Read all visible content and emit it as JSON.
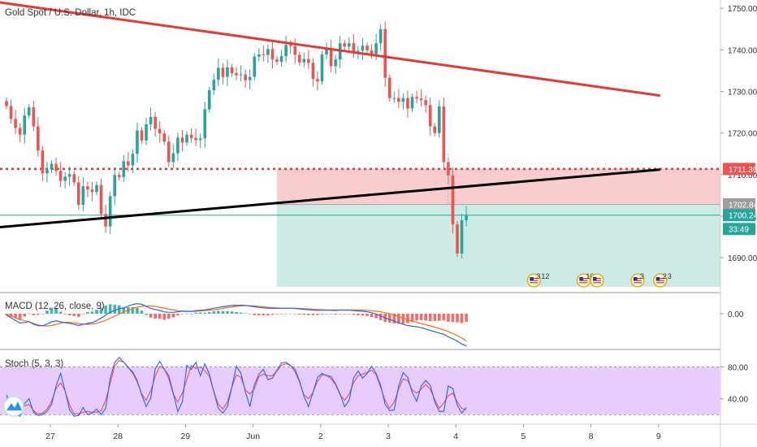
{
  "header": {
    "symbol_title": "Gold Spot / U.S. Dollar, 1h, IDC"
  },
  "colors": {
    "up": "#26a69a",
    "down": "#ef5350",
    "resistance_line": "#e53935",
    "support_line": "#000000",
    "stop_zone": "#f9cdcd",
    "target_zone": "#cdebe5",
    "macd_line": "#2962ff",
    "signal_line": "#ff6d00",
    "stoch_k": "#2962ff",
    "stoch_d": "#ef5350",
    "stoch_band": "#e6ccff",
    "axis_text": "#333333"
  },
  "chart_data": [
    {
      "type": "candlestick",
      "pane": "price",
      "title": "Gold Spot / U.S. Dollar, 1h, IDC",
      "y_ticks": [
        1690,
        1700,
        1710,
        1720,
        1730,
        1740,
        1750
      ],
      "y_tick_labels": [
        "1690.00",
        "1700.00",
        "1710.00",
        "1720.00",
        "1730.00",
        "1740.00",
        "1750.00"
      ],
      "ylim": [
        1682,
        1752
      ],
      "x_tick_labels": [
        "27",
        "28",
        "29",
        "Jun",
        "2",
        "3",
        "4",
        "5",
        "8",
        "9"
      ],
      "grid": false,
      "price_labels": [
        {
          "label": "1711.36",
          "value": 1711.36,
          "style": "stop"
        },
        {
          "label": "1702.84",
          "value": 1702.84,
          "style": "entry"
        },
        {
          "label": "1700.24",
          "value": 1700.24,
          "style": "last"
        },
        {
          "label": "33:49",
          "value": null,
          "style": "countdown"
        }
      ],
      "levels": {
        "horizontal_dotted": 1711.36,
        "entry": 1702.84,
        "current": 1700.24
      },
      "trendlines": [
        {
          "name": "descending resistance",
          "from": {
            "bar": -2,
            "price": 1751.5
          },
          "to": {
            "bar": 145,
            "price": 1729
          }
        },
        {
          "name": "ascending support",
          "from": {
            "bar": -2,
            "price": 1697.3
          },
          "to": {
            "bar": 145,
            "price": 1711.2
          }
        }
      ],
      "position": {
        "type": "short",
        "start_bar": 60,
        "end_bar": 145,
        "stop": 1711.36,
        "entry": 1702.84,
        "target_bottom": 1683
      },
      "candles_close": [
        1726.5,
        1723.4,
        1721.2,
        1719.6,
        1724.2,
        1726.2,
        1721.6,
        1715.8,
        1710.3,
        1711.2,
        1712.6,
        1710.9,
        1708.5,
        1709.5,
        1710.1,
        1708.1,
        1702.7,
        1707.2,
        1706.4,
        1705.8,
        1707.5,
        1700.5,
        1697.5,
        1704.8,
        1709.9,
        1709.4,
        1713.2,
        1712.2,
        1715.0,
        1720.6,
        1718.2,
        1722.1,
        1723.9,
        1721.0,
        1719.9,
        1717.9,
        1713.0,
        1715.1,
        1718.9,
        1717.7,
        1719.6,
        1718.8,
        1718.3,
        1718.7,
        1725.7,
        1730.3,
        1732.8,
        1735.7,
        1733.5,
        1735.8,
        1734.4,
        1733.9,
        1734.1,
        1732.7,
        1733.5,
        1738.4,
        1738.9,
        1738.8,
        1740.2,
        1737.7,
        1737.1,
        1738.5,
        1741.2,
        1740.9,
        1738.8,
        1737.0,
        1737.8,
        1736.9,
        1733.0,
        1732.4,
        1738.9,
        1740.2,
        1736.1,
        1737.7,
        1741.6,
        1740.8,
        1741.6,
        1739.6,
        1739.8,
        1741.0,
        1739.9,
        1739.0,
        1741.6,
        1745.0,
        1733.3,
        1728.4,
        1728.4,
        1727.5,
        1728.4,
        1725.9,
        1728.7,
        1728.3,
        1727.9,
        1726.7,
        1721.6,
        1720.0,
        1726.4,
        1713.0,
        1709.8,
        1698.0,
        1691.0,
        1699.0,
        1700.2
      ]
    },
    {
      "type": "line",
      "pane": "macd",
      "label": "MACD (12, 26, close, 9)",
      "y_ticks": [
        0
      ],
      "y_tick_labels": [
        "0.00"
      ],
      "ylim": [
        -3.5,
        2.0
      ],
      "series": [
        {
          "name": "MACD",
          "values": [
            -0.14,
            -0.42,
            -0.7,
            -0.96,
            -0.9,
            -0.81,
            -1.08,
            -1.22,
            -1.24,
            -1.06,
            -0.84,
            -0.73,
            -0.83,
            -0.92,
            -0.98,
            -1.09,
            -1.21,
            -1.09,
            -0.99,
            -0.92,
            -0.72,
            -0.44,
            -0.15,
            0.15,
            0.34,
            0.51,
            0.59,
            0.79,
            0.95,
            1.03,
            0.97,
            0.74,
            0.55,
            0.43,
            0.33,
            0.18,
            0.15,
            0.14,
            0.2,
            0.26,
            0.25,
            0.24,
            0.32,
            0.36,
            0.39,
            0.47,
            0.57,
            0.65,
            0.72,
            0.79,
            0.84,
            0.87,
            0.87,
            0.85,
            0.79,
            0.71,
            0.65,
            0.6,
            0.56,
            0.55,
            0.55,
            0.55,
            0.57,
            0.57,
            0.54,
            0.49,
            0.45,
            0.41,
            0.37,
            0.35,
            0.37,
            0.37,
            0.35,
            0.33,
            0.36,
            0.37,
            0.37,
            0.32,
            0.28,
            0.25,
            0.2,
            0.1,
            -0.03,
            -0.22,
            -0.43,
            -0.59,
            -0.76,
            -0.94,
            -1.09,
            -1.21,
            -1.28,
            -1.33,
            -1.43,
            -1.57,
            -1.72,
            -1.85,
            -1.98,
            -2.11,
            -2.36,
            -2.58,
            -2.8,
            -3.1,
            -3.3
          ]
        },
        {
          "name": "Signal",
          "values": [
            -0.06,
            -0.23,
            -0.44,
            -0.61,
            -0.72,
            -0.83,
            -0.99,
            -1.15,
            -1.24,
            -1.26,
            -1.21,
            -1.1,
            -0.96,
            -0.88,
            -0.88,
            -0.94,
            -1.01,
            -1.07,
            -1.09,
            -1.06,
            -0.98,
            -0.84,
            -0.67,
            -0.46,
            -0.24,
            -0.03,
            0.18,
            0.37,
            0.53,
            0.67,
            0.77,
            0.81,
            0.8,
            0.75,
            0.66,
            0.57,
            0.47,
            0.38,
            0.31,
            0.26,
            0.24,
            0.24,
            0.25,
            0.28,
            0.32,
            0.36,
            0.41,
            0.47,
            0.55,
            0.63,
            0.7,
            0.76,
            0.8,
            0.82,
            0.82,
            0.8,
            0.76,
            0.71,
            0.66,
            0.62,
            0.58,
            0.56,
            0.56,
            0.56,
            0.55,
            0.54,
            0.52,
            0.5,
            0.46,
            0.43,
            0.41,
            0.39,
            0.38,
            0.38,
            0.38,
            0.39,
            0.39,
            0.39,
            0.38,
            0.37,
            0.35,
            0.31,
            0.26,
            0.19,
            0.1,
            -0.01,
            -0.14,
            -0.3,
            -0.45,
            -0.6,
            -0.75,
            -0.89,
            -1.02,
            -1.13,
            -1.25,
            -1.39,
            -1.52,
            -1.67,
            -1.84,
            -2.04,
            -2.25,
            -2.5,
            -2.78
          ]
        }
      ]
    },
    {
      "type": "line",
      "pane": "stoch",
      "label": "Stoch (5, 3, 3)",
      "y_ticks": [
        40,
        80
      ],
      "y_tick_labels": [
        "40.00",
        "80.00"
      ],
      "band": [
        20,
        80
      ],
      "ylim": [
        10,
        100
      ],
      "series": [
        {
          "name": "%K",
          "values": [
            45,
            32,
            21,
            18,
            34,
            40,
            23,
            19,
            20,
            24,
            33,
            56,
            72,
            50,
            26,
            18,
            19,
            29,
            20,
            22,
            27,
            20,
            28,
            65,
            86,
            92,
            86,
            79,
            74,
            63,
            45,
            30,
            41,
            78,
            87,
            77,
            69,
            47,
            24,
            36,
            82,
            77,
            86,
            69,
            84,
            71,
            49,
            28,
            22,
            30,
            55,
            81,
            72,
            49,
            30,
            58,
            71,
            77,
            64,
            66,
            76,
            85,
            86,
            82,
            77,
            62,
            43,
            30,
            48,
            67,
            72,
            69,
            68,
            59,
            46,
            30,
            38,
            66,
            75,
            66,
            72,
            81,
            72,
            57,
            33,
            25,
            26,
            56,
            73,
            67,
            48,
            37,
            56,
            63,
            57,
            36,
            24,
            24,
            56,
            53,
            32,
            22,
            29
          ]
        },
        {
          "name": "%D",
          "values": [
            41,
            34,
            24,
            24,
            31,
            33,
            25,
            21,
            22,
            27,
            37,
            53,
            60,
            50,
            32,
            21,
            21,
            23,
            24,
            23,
            23,
            25,
            38,
            59,
            81,
            88,
            86,
            80,
            72,
            61,
            46,
            38,
            50,
            68,
            81,
            78,
            65,
            46,
            36,
            47,
            64,
            82,
            78,
            80,
            75,
            68,
            49,
            33,
            27,
            36,
            55,
            70,
            67,
            51,
            46,
            53,
            68,
            71,
            69,
            69,
            75,
            82,
            84,
            82,
            74,
            61,
            45,
            40,
            48,
            62,
            70,
            70,
            65,
            58,
            45,
            38,
            46,
            60,
            69,
            71,
            73,
            76,
            70,
            54,
            38,
            28,
            36,
            52,
            65,
            63,
            51,
            47,
            52,
            58,
            52,
            39,
            28,
            35,
            44,
            47,
            36,
            28,
            26
          ]
        }
      ]
    }
  ],
  "event_markers": [
    {
      "label": "3",
      "count_label": "12",
      "bar": 117,
      "flag": "us-flag-icon"
    },
    {
      "label": "10",
      "count_label": "",
      "bar": 128,
      "flag": "us-flag-icon"
    },
    {
      "label": "",
      "count_label": "",
      "bar": 131,
      "flag": "us-flag-icon"
    },
    {
      "label": "3",
      "count_label": "",
      "bar": 140,
      "flag": "us-flag-icon"
    },
    {
      "label": "2",
      "count_label": "3",
      "bar": 145,
      "flag": "us-flag-icon"
    }
  ]
}
